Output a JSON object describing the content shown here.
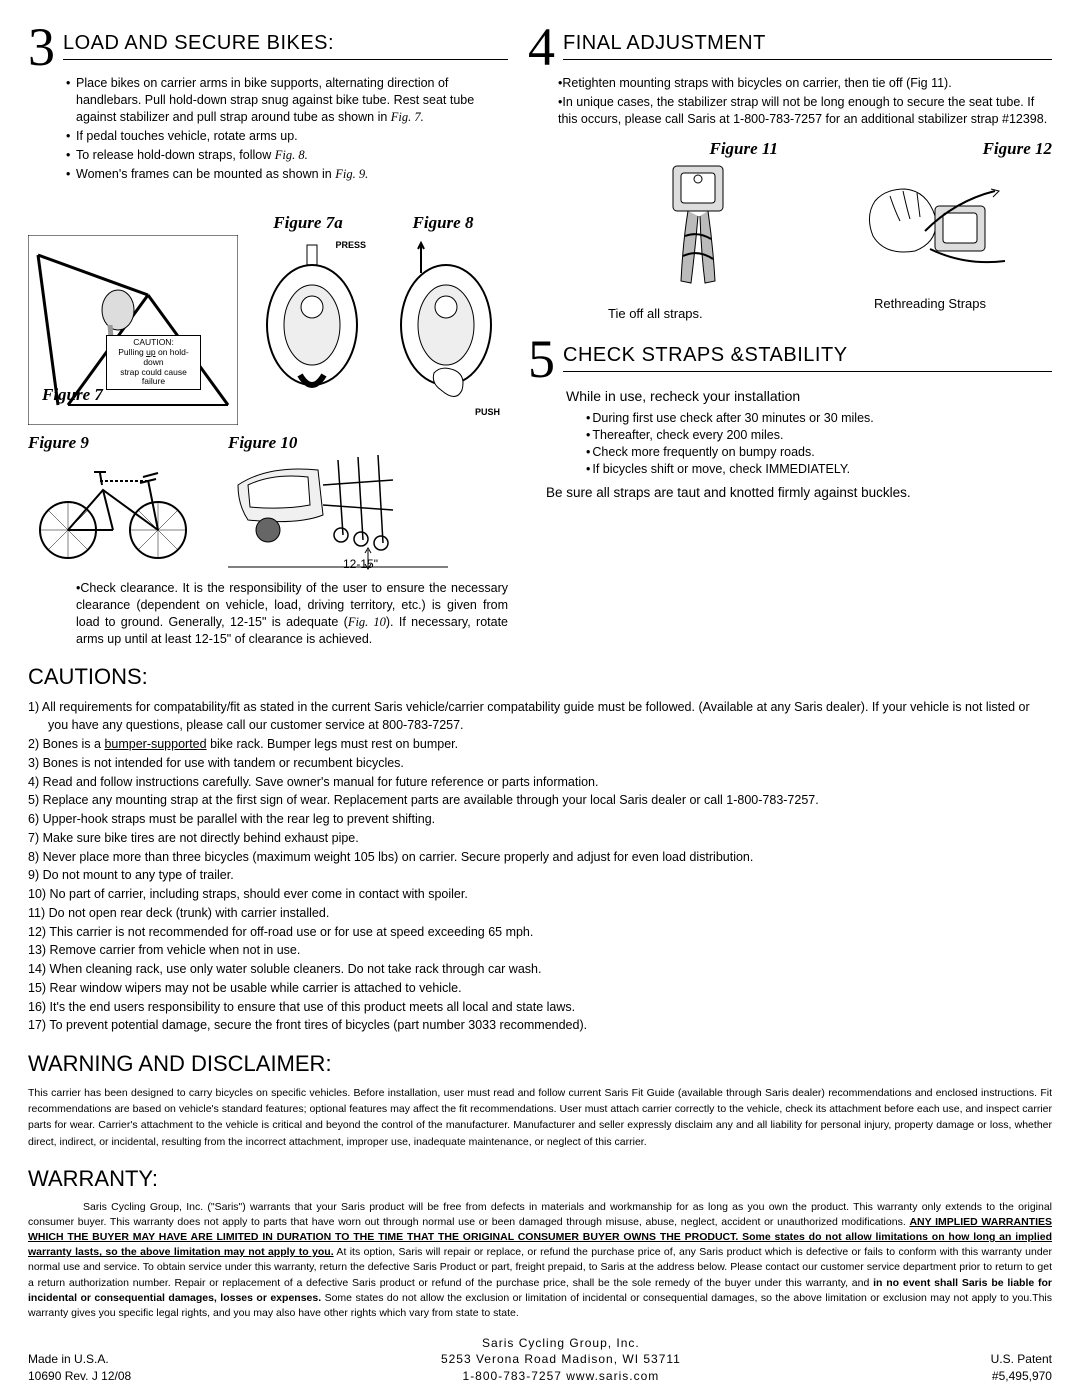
{
  "step3": {
    "num": "3",
    "title": "Load and Secure Bikes:",
    "bullets": [
      "Place bikes on carrier arms in bike supports, alternating direction of handlebars. Pull hold-down strap snug against bike tube. Rest seat tube against stabilizer and pull strap around tube as shown in ",
      "If pedal touches vehicle, rotate arms up.",
      "To release hold-down straps, follow ",
      "Women's frames can be mounted as shown in "
    ],
    "bullet_figs": [
      "Fig. 7.",
      "",
      "Fig. 8.",
      "Fig. 9."
    ],
    "fig7a_label": "Figure 7a",
    "fig8_label": "Figure 8",
    "fig7_label": "Figure 7",
    "fig9_label": "Figure 9",
    "fig10_label": "Figure 10",
    "caution_title": "CAUTION:",
    "caution_line1": "Pulling up on hold-down",
    "caution_line2": "strap could cause failure",
    "press_label": "PRESS",
    "push_label": "PUSH",
    "dim_label": "12-15\"",
    "clearance": "•Check clearance. It is the responsibility of the user to ensure the necessary clearance (dependent on vehicle, load, driving territory, etc.) is given from load to ground. Generally, 12-15\" is adequate (",
    "clearance_fig": "Fig. 10",
    "clearance_end": "). If necessary, rotate arms up until at least 12-15\" of clearance is achieved."
  },
  "step4": {
    "num": "4",
    "title": "Final Adjustment",
    "line1": "•Retighten mounting straps with bicycles on carrier, then tie off (Fig 11).",
    "line2": "•In unique cases, the stabilizer strap will not be long enough to secure the seat tube. If this occurs, please call Saris at 1-800-783-7257 for an additional stabilizer strap #12398.",
    "fig11_label": "Figure 11",
    "fig12_label": "Figure 12",
    "tieoff": "Tie off all straps.",
    "rethread": "Rethreading Straps"
  },
  "step5": {
    "num": "5",
    "title": "Check Straps &Stability",
    "intro": "While in use, recheck your installation",
    "bullets": [
      "During first use check after 30 minutes or 30 miles.",
      "Thereafter, check every 200 miles.",
      "Check more frequently on bumpy roads.",
      "If bicycles shift or move, check IMMEDIATELY."
    ],
    "outro": "Be sure all straps are taut and knotted firmly against buckles."
  },
  "cautions": {
    "heading": "Cautions:",
    "items": [
      "1)  All requirements for compatability/fit as stated in the current Saris vehicle/carrier compatability guide must be followed. (Available at any Saris dealer).  If your vehicle is not listed or you have any questions, please call our customer service at 800-783-7257.",
      "2)  Bones is a bumper-supported bike rack. Bumper legs must rest on bumper.",
      "3)  Bones is not intended for use with tandem or recumbent bicycles.",
      "4)  Read and follow instructions carefully. Save owner's manual for future reference or parts information.",
      "5)  Replace any mounting strap at the first sign of wear. Replacement parts are available through your local Saris dealer or call 1-800-783-7257.",
      "6)  Upper-hook straps must be parallel with the rear leg to prevent shifting.",
      "7)  Make sure bike tires are not directly behind exhaust pipe.",
      "8)  Never place more than three bicycles (maximum weight 105 lbs) on carrier.  Secure properly and adjust for even load distribution.",
      "9)  Do not mount to any type of trailer.",
      "10) No part of carrier, including straps, should ever come in contact with spoiler.",
      "11)  Do not open rear deck (trunk) with carrier installed.",
      "12) This carrier is not recommended for off-road use or for use at speed exceeding 65 mph.",
      "13) Remove carrier from vehicle when not in use.",
      "14) When cleaning rack, use only water soluble cleaners.  Do not take rack through car wash.",
      "15) Rear window wipers may not be usable while carrier is attached to vehicle.",
      "16) It's the end users responsibility to ensure that use of this product meets all local and state laws.",
      "17) To prevent potential damage, secure the front tires of bicycles (part number 3033 recommended)."
    ]
  },
  "warning": {
    "heading": "Warning and Disclaimer:",
    "text": "This carrier has been designed to carry bicycles on specific vehicles.  Before installation, user must read and follow current Saris Fit Guide (available through Saris dealer) recommendations and enclosed instructions.  Fit recommendations are based on vehicle's standard features; optional features may affect the fit recommendations.  User must attach carrier correctly to the vehicle, check its attachment before each use, and inspect carrier parts for wear.  Carrier's attachment to the vehicle is critical and beyond the control of the manufacturer.  Manufacturer and seller expressly disclaim any and all liability for personal injury, property damage or loss, whether direct, indirect, or incidental, resulting from the incorrect attachment, improper use, inadequate maintenance, or neglect of this carrier."
  },
  "warranty": {
    "heading": "Warranty:",
    "p1_pre": "Saris Cycling Group, Inc.  (\"Saris\") warrants that your Saris product will be free from defects in materials and workmanship for as long as you own the product.  This warranty only extends to the original consumer buyer. This warranty does not apply to parts that have worn out through normal use or been damaged through misuse, abuse, neglect, accident or unauthorized modifications. ",
    "p1_bold1": "ANY IMPLIED WARRANTIES WHICH THE BUYER MAY HAVE ARE LIMITED IN DURATION TO THE TIME THAT THE ORIGINAL CONSUMER BUYER OWNS THE PRODUCT.  Some states do not allow limitations on how long an implied warranty lasts, so the above limitation may not apply to you.",
    "p1_mid": " At its option, Saris will repair or replace, or refund the purchase price of, any Saris product which is defective or fails to conform with this warranty under normal use and service.  To obtain service under this warranty, return the defective Saris Product or part, freight prepaid, to Saris at the address below.  Please contact our customer service department prior to return to get a return authorization number.  Repair or replacement of a defective Saris product or refund of the purchase price, shall be the sole remedy of the buyer under this warranty, and ",
    "p1_bold2": "in no event shall Saris be liable for incidental or consequential damages, losses or expenses.",
    "p1_end": "  Some states do not allow the exclusion or limitation of incidental or consequential damages, so the above limitation or exclusion may not apply to you.This warranty gives you specific legal rights, and you may also have other rights which vary from state to state."
  },
  "footer": {
    "made": "Made in U.S.A.",
    "rev": "10690   Rev.  J   12/08",
    "company": "Saris Cycling Group, Inc.",
    "address": "5253  Verona Road    Madison, WI   53711",
    "phone_web": "1-800-783-7257   www.saris.com",
    "patent1": "U.S. Patent",
    "patent2": "#5,495,970"
  }
}
